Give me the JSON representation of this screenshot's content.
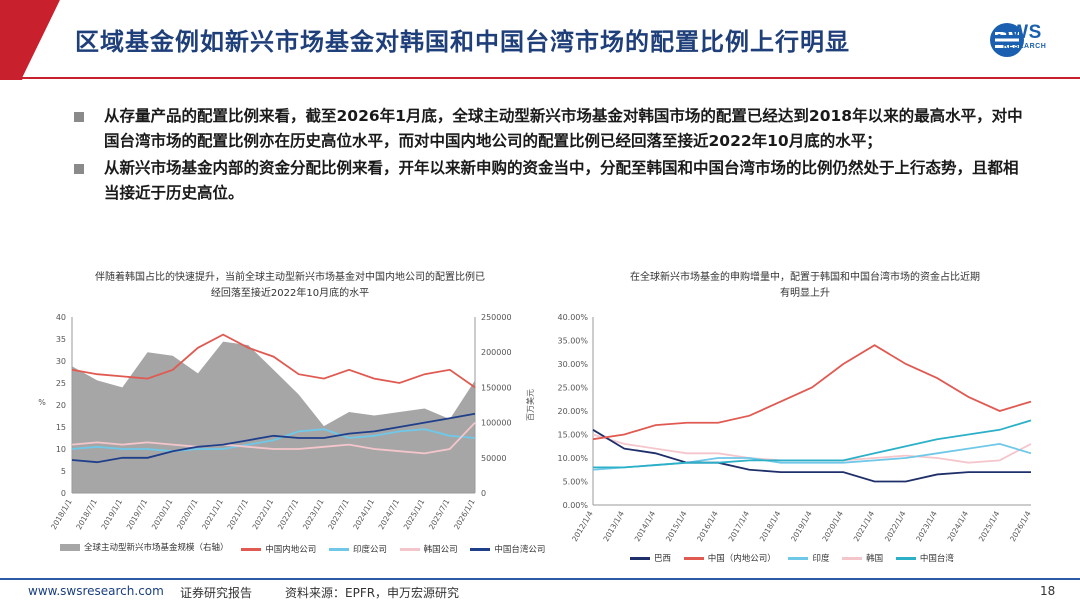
{
  "header": {
    "title": "区域基金例如新兴市场基金对韩国和中国台湾市场的配置比例上行明显",
    "logo_text": "SWS",
    "logo_sub": "RESEARCH"
  },
  "bullets": [
    "从存量产品的配置比例来看，截至2026年1月底，全球主动型新兴市场基金对韩国市场的配置已经达到2018年以来的最高水平，对中国台湾市场的配置比例亦在历史高位水平，而对中国内地公司的配置比例已经回落至接近2022年10月底的水平；",
    "从新兴市场基金内部的资金分配比例来看，开年以来新申购的资金当中，分配至韩国和中国台湾市场的比例仍然处于上行态势，且都相当接近于历史高位。"
  ],
  "colors": {
    "brand_blue": "#1f3f7a",
    "accent_red": "#c8202d",
    "aum_gray": "#a6a6a6",
    "china": "#e05a52",
    "india": "#6fc8e8",
    "korea": "#f4c6cc",
    "taiwan": "#1f3f8a",
    "brazil": "#1f2f6a",
    "taiwan_right": "#2bb0c8"
  },
  "chart_data": [
    {
      "type": "line",
      "title": "伴随着韩国占比的快速提升，当前全球主动型新兴市场基金对中国内地公司的配置比例已经回落至接近2022年10月底的水平",
      "title_line1": "伴随着韩国占比的快速提升，当前全球主动型新兴市场基金对中国内地公司的配置比例已",
      "title_line2": "经回落至接近2022年10月底的水平",
      "ylabel_left": "%",
      "ylabel_right": "百万美元",
      "ylim_left": [
        0,
        40
      ],
      "ylim_right": [
        0,
        250000
      ],
      "yticks_left": [
        "0",
        "5",
        "10",
        "15",
        "20",
        "25",
        "30",
        "35",
        "40"
      ],
      "yticks_right": [
        "0",
        "50000",
        "100000",
        "150000",
        "200000",
        "250000"
      ],
      "x": [
        "2018/1/1",
        "2018/7/1",
        "2019/1/1",
        "2019/7/1",
        "2020/1/1",
        "2020/7/1",
        "2021/1/1",
        "2021/7/1",
        "2022/1/1",
        "2022/7/1",
        "2023/1/1",
        "2023/7/1",
        "2024/1/1",
        "2024/7/1",
        "2025/1/1",
        "2025/7/1",
        "2026/1/1"
      ],
      "series": [
        {
          "name": "全球主动型新兴市场基金规模（右轴）",
          "axis": "right",
          "kind": "area",
          "values": [
            180000,
            160000,
            150000,
            200000,
            195000,
            170000,
            215000,
            210000,
            175000,
            140000,
            95000,
            115000,
            110000,
            115000,
            120000,
            105000,
            160000
          ]
        },
        {
          "name": "中国内地公司",
          "axis": "left",
          "values": [
            28,
            27,
            26.5,
            26,
            28,
            33,
            36,
            33,
            31,
            27,
            26,
            28,
            26,
            25,
            27,
            28,
            24
          ]
        },
        {
          "name": "印度公司",
          "axis": "left",
          "values": [
            10,
            10.5,
            10,
            10,
            9.5,
            10,
            10,
            11,
            12,
            14,
            14.5,
            12.5,
            13,
            14,
            14.5,
            13,
            12.5
          ]
        },
        {
          "name": "韩国公司",
          "axis": "left",
          "values": [
            11,
            11.5,
            11,
            11.5,
            11,
            10.5,
            11,
            10.5,
            10,
            10,
            10.5,
            11,
            10,
            9.5,
            9,
            10,
            16
          ]
        },
        {
          "name": "中国台湾公司",
          "axis": "left",
          "values": [
            7.5,
            7,
            8,
            8,
            9.5,
            10.5,
            11,
            12,
            13,
            12.5,
            12.5,
            13.5,
            14,
            15,
            16,
            17,
            18
          ]
        }
      ]
    },
    {
      "type": "line",
      "title": "在全球新兴市场基金的申购增量中，配置于韩国和中国台湾市场的资金占比近期有明显上升",
      "title_line1": "在全球新兴市场基金的申购增量中，配置于韩国和中国台湾市场的资金占比近期",
      "title_line2": "有明显上升",
      "ylim": [
        0,
        40
      ],
      "yticks": [
        "0.00%",
        "5.00%",
        "10.00%",
        "15.00%",
        "20.00%",
        "25.00%",
        "30.00%",
        "35.00%",
        "40.00%"
      ],
      "x": [
        "2012/1/4",
        "2013/1/4",
        "2014/1/4",
        "2015/1/4",
        "2016/1/4",
        "2017/1/4",
        "2018/1/4",
        "2019/1/4",
        "2020/1/4",
        "2021/1/4",
        "2022/1/4",
        "2023/1/4",
        "2024/1/4",
        "2025/1/4",
        "2026/1/4"
      ],
      "series": [
        {
          "name": "巴西",
          "values": [
            16,
            12,
            11,
            9,
            9,
            7.5,
            7,
            7,
            7,
            5,
            5,
            6.5,
            7,
            7,
            7
          ]
        },
        {
          "name": "中国（内地公司）",
          "values": [
            14,
            15,
            17,
            17.5,
            17.5,
            19,
            22,
            25,
            30,
            34,
            30,
            27,
            23,
            20,
            22
          ]
        },
        {
          "name": "印度",
          "values": [
            7.5,
            8,
            8.5,
            9,
            10,
            10,
            9,
            9,
            9,
            9.5,
            10,
            11,
            12,
            13,
            11
          ]
        },
        {
          "name": "韩国",
          "values": [
            15,
            13,
            12,
            11,
            11,
            10,
            9.5,
            9.5,
            9.5,
            10,
            10.5,
            10,
            9,
            9.5,
            13
          ]
        },
        {
          "name": "中国台湾",
          "values": [
            8,
            8,
            8.5,
            9,
            9,
            9.5,
            9.5,
            9.5,
            9.5,
            11,
            12.5,
            14,
            15,
            16,
            18
          ]
        }
      ]
    }
  ],
  "footer": {
    "website": "www.swsresearch.com",
    "report_type": "证券研究报告",
    "source": "资料来源：EPFR，申万宏源研究",
    "page_number": "18"
  }
}
